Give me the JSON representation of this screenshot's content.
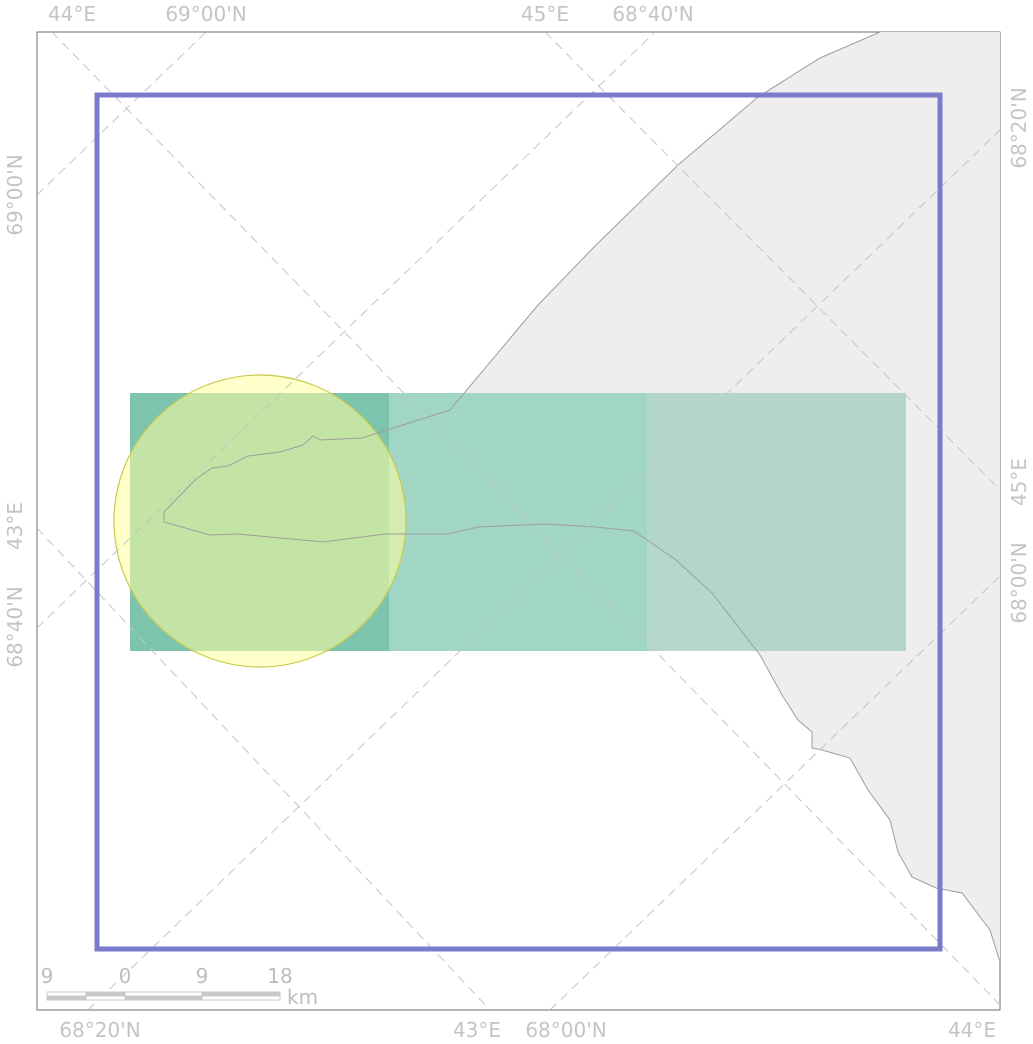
{
  "graticule_labels": {
    "top": [
      "44°E",
      "69°00'N",
      "45°E",
      "68°40'N"
    ],
    "bottom": [
      "68°20'N",
      "43°E",
      "68°00'N",
      "44°E"
    ],
    "left": [
      "69°00'N",
      "43°E",
      "68°40'N"
    ],
    "right": [
      "68°20'N",
      "45°E",
      "68°00'N"
    ]
  },
  "scale_bar": {
    "ticks": [
      "9",
      "0",
      "9",
      "18"
    ],
    "unit": "km"
  },
  "colors": {
    "land": "#eeeeee",
    "coastline": "#9e9e9e",
    "study_area_outline": "#7b7bcc",
    "grid_cell_dark": "#76c1ab",
    "grid_cell_mid": "#9bd4c0",
    "grid_cell_light": "#a9d1c3",
    "circle_fill": "#ffff9e",
    "circle_stroke": "#c9c94c",
    "graticule": "#c4c4c4"
  }
}
